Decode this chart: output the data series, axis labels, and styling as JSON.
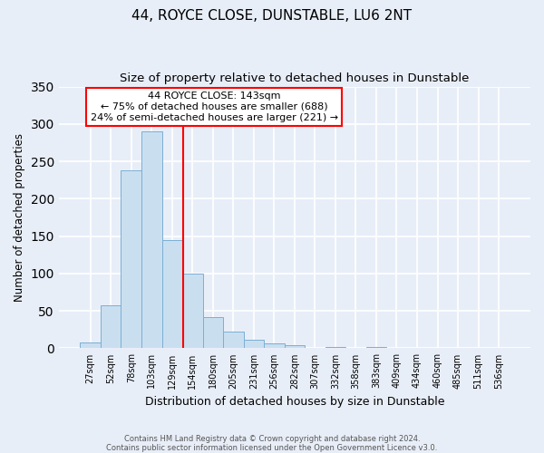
{
  "title": "44, ROYCE CLOSE, DUNSTABLE, LU6 2NT",
  "subtitle": "Size of property relative to detached houses in Dunstable",
  "bar_labels": [
    "27sqm",
    "52sqm",
    "78sqm",
    "103sqm",
    "129sqm",
    "154sqm",
    "180sqm",
    "205sqm",
    "231sqm",
    "256sqm",
    "282sqm",
    "307sqm",
    "332sqm",
    "358sqm",
    "383sqm",
    "409sqm",
    "434sqm",
    "460sqm",
    "485sqm",
    "511sqm",
    "536sqm"
  ],
  "bar_values": [
    8,
    57,
    238,
    290,
    145,
    100,
    42,
    22,
    12,
    6,
    4,
    1,
    2,
    1,
    2,
    0,
    0,
    0,
    0,
    1,
    1
  ],
  "bar_color": "#c9dff0",
  "bar_edge_color": "#7bafd4",
  "ylabel": "Number of detached properties",
  "xlabel": "Distribution of detached houses by size in Dunstable",
  "ylim": [
    0,
    350
  ],
  "yticks": [
    0,
    50,
    100,
    150,
    200,
    250,
    300,
    350
  ],
  "vline_x": 4.56,
  "vline_color": "red",
  "annotation_title": "44 ROYCE CLOSE: 143sqm",
  "annotation_line1": "← 75% of detached houses are smaller (688)",
  "annotation_line2": "24% of semi-detached houses are larger (221) →",
  "annotation_box_color": "white",
  "annotation_box_edge_color": "red",
  "footer1": "Contains HM Land Registry data © Crown copyright and database right 2024.",
  "footer2": "Contains public sector information licensed under the Open Government Licence v3.0.",
  "bg_color": "#e8eef8",
  "grid_color": "white",
  "title_fontsize": 11,
  "subtitle_fontsize": 9.5
}
